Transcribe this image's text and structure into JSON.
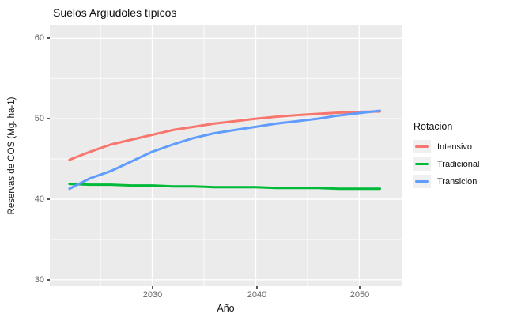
{
  "title": "Suelos Argiudoles típicos",
  "axes": {
    "x_title": "Año",
    "y_title": "Reservas de COS (Mg. ha-1)"
  },
  "legend": {
    "title": "Rotacion",
    "items": [
      {
        "label": "Intensivo",
        "color": "#F8766D"
      },
      {
        "label": "Tradicional",
        "color": "#00BA38"
      },
      {
        "label": "Transicion",
        "color": "#619CFF"
      }
    ]
  },
  "colors": {
    "panel_background": "#EBEBEB",
    "gridline": "#FFFFFF",
    "tick_text": "#666666",
    "legend_key_background": "#F0F0F0"
  },
  "chart_data": {
    "type": "line",
    "title": "Suelos Argiudoles típicos",
    "xlabel": "Año",
    "ylabel": "Reservas de COS (Mg. ha-1)",
    "xlim": [
      2020.1,
      2054.1
    ],
    "ylim": [
      29.2,
      61.6
    ],
    "grid": true,
    "legend_position": "right",
    "x": [
      2022,
      2024,
      2026,
      2028,
      2030,
      2032,
      2034,
      2036,
      2038,
      2040,
      2042,
      2044,
      2046,
      2048,
      2050,
      2052
    ],
    "series": [
      {
        "name": "Intensivo",
        "color": "#F8766D",
        "values": [
          44.9,
          45.9,
          46.8,
          47.4,
          48.0,
          48.6,
          49.0,
          49.4,
          49.7,
          50.0,
          50.25,
          50.45,
          50.6,
          50.75,
          50.85,
          50.9
        ]
      },
      {
        "name": "Tradicional",
        "color": "#00BA38",
        "values": [
          41.9,
          41.8,
          41.8,
          41.7,
          41.7,
          41.6,
          41.6,
          41.5,
          41.5,
          41.5,
          41.4,
          41.4,
          41.4,
          41.3,
          41.3,
          41.3
        ]
      },
      {
        "name": "Transicion",
        "color": "#619CFF",
        "values": [
          41.3,
          42.6,
          43.5,
          44.7,
          45.9,
          46.8,
          47.6,
          48.2,
          48.6,
          49.0,
          49.4,
          49.7,
          50.0,
          50.4,
          50.7,
          51.0
        ]
      }
    ],
    "xticks": {
      "values": [
        2030,
        2040,
        2050
      ],
      "labels": [
        "2030",
        "2040",
        "2050"
      ]
    },
    "yticks": {
      "values": [
        30,
        40,
        50,
        60
      ],
      "labels": [
        "30",
        "40",
        "50",
        "60"
      ]
    },
    "xticks_minor": [
      2025,
      2035,
      2045
    ],
    "yticks_minor": [
      35,
      45,
      55
    ]
  }
}
